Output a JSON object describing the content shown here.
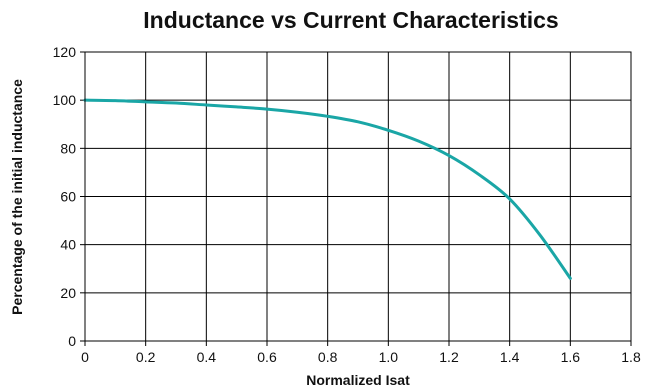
{
  "chart_data": {
    "type": "line",
    "title": "Inductance vs Current Characteristics",
    "xlabel": "Normalized Isat",
    "ylabel": "Percentage of the initial inductance",
    "xlim": [
      0,
      1.8
    ],
    "ylim": [
      0,
      120
    ],
    "x_ticks": [
      "0",
      "0.2",
      "0.4",
      "0.6",
      "0.8",
      "1.0",
      "1.2",
      "1.4",
      "1.6",
      "1.8"
    ],
    "y_ticks": [
      "0",
      "20",
      "40",
      "60",
      "80",
      "100",
      "120"
    ],
    "grid": true,
    "legend": "none",
    "series": [
      {
        "color": "#1aa6a6",
        "x": [
          0,
          0.1,
          0.2,
          0.3,
          0.4,
          0.5,
          0.6,
          0.7,
          0.8,
          0.9,
          1.0,
          1.1,
          1.2,
          1.3,
          1.4,
          1.5,
          1.6
        ],
        "y": [
          100,
          99.8,
          99.3,
          98.8,
          98.0,
          97.2,
          96.3,
          95.0,
          93.3,
          91.0,
          87.5,
          83.0,
          77.0,
          69.0,
          59.0,
          44.0,
          26.0
        ]
      }
    ]
  }
}
